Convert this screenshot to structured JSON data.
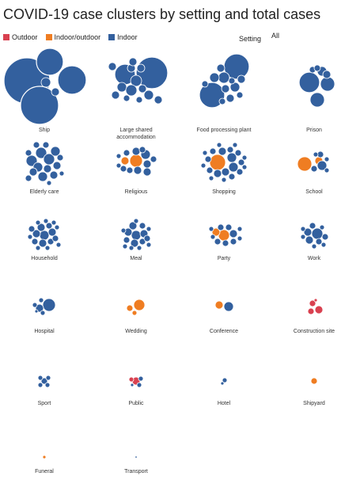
{
  "title": "COVID-19 case clusters by setting and total cases",
  "legend": [
    {
      "label": "Outdoor",
      "color": "#d94150"
    },
    {
      "label": "Indoor/outdoor",
      "color": "#ef7d22"
    },
    {
      "label": "Indoor",
      "color": "#33609e"
    }
  ],
  "filter": {
    "label": "Setting",
    "value": "All"
  },
  "chart_data": {
    "type": "packed-bubble",
    "settings": [
      {
        "name": "Ship",
        "label_lines": [
          "Ship"
        ]
      },
      {
        "name": "Large shared accommodation",
        "label_lines": [
          "Large shared",
          "accommodation"
        ]
      },
      {
        "name": "Food processing plant",
        "label_lines": [
          "Food processing plant"
        ]
      },
      {
        "name": "Prison",
        "label_lines": [
          "Prison"
        ]
      },
      {
        "name": "Elderly care",
        "label_lines": [
          "Elderly care"
        ]
      },
      {
        "name": "Religious",
        "label_lines": [
          "Religious"
        ]
      },
      {
        "name": "Shopping",
        "label_lines": [
          "Shopping"
        ]
      },
      {
        "name": "School",
        "label_lines": [
          "School"
        ]
      },
      {
        "name": "Household",
        "label_lines": [
          "Household"
        ]
      },
      {
        "name": "Meal",
        "label_lines": [
          "Meal"
        ]
      },
      {
        "name": "Party",
        "label_lines": [
          "Party"
        ]
      },
      {
        "name": "Work",
        "label_lines": [
          "Work"
        ]
      },
      {
        "name": "Hospital",
        "label_lines": [
          "Hospital"
        ]
      },
      {
        "name": "Wedding",
        "label_lines": [
          "Wedding"
        ]
      },
      {
        "name": "Conference",
        "label_lines": [
          "Conference"
        ]
      },
      {
        "name": "Construction site",
        "label_lines": [
          "Construction site"
        ]
      },
      {
        "name": "Sport",
        "label_lines": [
          "Sport"
        ]
      },
      {
        "name": "Public",
        "label_lines": [
          "Public"
        ]
      },
      {
        "name": "Hotel",
        "label_lines": [
          "Hotel"
        ]
      },
      {
        "name": "Shipyard",
        "label_lines": [
          "Shipyard"
        ]
      },
      {
        "name": "Funeral",
        "label_lines": [
          "Funeral"
        ]
      },
      {
        "name": "Transport",
        "label_lines": [
          "Transport"
        ]
      }
    ]
  }
}
